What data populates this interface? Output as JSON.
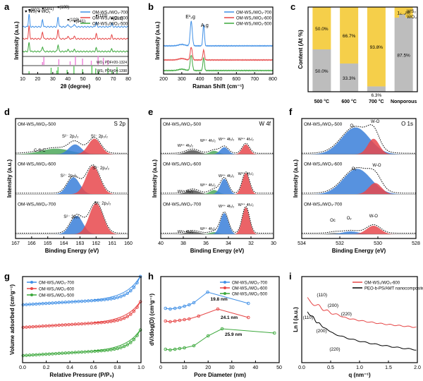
{
  "colors": {
    "blue": "#3f8fe6",
    "red": "#e64646",
    "green": "#3ca83c",
    "yellow": "#f5cf4a",
    "gray": "#bdbdbd",
    "pink": "#ee7fd8",
    "fillBlue": "#3a7fd9",
    "fillRed": "#e8484c",
    "fillGreen": "#4ca85a",
    "fillGray": "#8a8a8a"
  },
  "panels": [
    {
      "key": "a",
      "letter": "a",
      "xlabel": "2θ (degree)",
      "ylabel": "Intensity (a.u.)",
      "ticks": [
        "10",
        "20",
        "30",
        "40",
        "50",
        "60",
        "70",
        "80"
      ],
      "legend": [
        "OM-WS₂/WO₃-700",
        "OM-WS₂/WO₃-600",
        "OM-WS₂/WO₃-500"
      ],
      "markers": [
        "WS₂",
        "WO₃"
      ],
      "annotations": [
        "(002)",
        "(001)",
        "(100)",
        "(103)",
        "(041)",
        "(110)",
        "(201)"
      ],
      "refs": [
        "WO₃ PDF#20-1324",
        "WS₂ PDF#04-1398"
      ]
    },
    {
      "key": "b",
      "letter": "b",
      "xlabel": "Raman Shift (cm⁻¹)",
      "ylabel": "Intensity (a.u.)",
      "ticks": [
        "200",
        "300",
        "400",
        "500",
        "600",
        "700",
        "800"
      ],
      "legend": [
        "OM-WS₂/WO₃-700",
        "OM-WS₂/WO₃-600",
        "OM-WS₂/WO₃-500"
      ],
      "annotations": [
        "E¹₂g",
        "A₁g"
      ]
    },
    {
      "key": "c",
      "letter": "c",
      "ylabel": "Content (At %)",
      "ticks": [
        "0",
        "20",
        "40",
        "60",
        "80",
        "100"
      ],
      "legend": [
        "WS₂",
        "WO₃"
      ]
    },
    {
      "key": "d",
      "letter": "d",
      "xlabel": "Binding Energy (eV)",
      "ylabel": "Intensity (a.u.)",
      "title": "S 2p",
      "ticks": [
        "167",
        "166",
        "165",
        "164",
        "163",
        "162",
        "161",
        "160"
      ],
      "samples": [
        "OM-WS₂/WO₃-500",
        "OM-WS₂/WO₃-600",
        "OM-WS₂/WO₃-700"
      ],
      "peaks": [
        "S²⁻ 2p₁/₂",
        "S²⁻ 2p₃/₂",
        "C-S-C"
      ]
    },
    {
      "key": "e",
      "letter": "e",
      "xlabel": "Binding Energy (eV)",
      "ylabel": "Intensity (a.u.)",
      "title": "W 4f",
      "ticks": [
        "40",
        "38",
        "36",
        "34",
        "32",
        "30"
      ],
      "samples": [
        "OM-WS₂/WO₃-500",
        "OM-WS₂/WO₃-600",
        "OM-WS₂/WO₃-700"
      ],
      "peaks": [
        "W⁶⁺ 4f₅/₂",
        "W⁶⁺ 4f₇/₂",
        "W⁴⁺ 4f₅/₂",
        "W⁴⁺ 4f₇/₂"
      ]
    },
    {
      "key": "f",
      "letter": "f",
      "xlabel": "Binding Energy (eV)",
      "ylabel": "Intensity (a.u.)",
      "title": "O 1s",
      "ticks": [
        "534",
        "532",
        "530",
        "528"
      ],
      "samples": [
        "OM-WS₂/WO₃-500",
        "OM-WS₂/WO₃-600",
        "OM-WS₂/WO₃-700"
      ],
      "peaks": [
        "Oᵥ",
        "W-O",
        "Oc"
      ]
    },
    {
      "key": "g",
      "letter": "g",
      "xlabel": "Relative Pressure (P/P₀)",
      "ylabel": "Volume adsorbed (cm³g⁻¹)",
      "xticks": [
        "0.0",
        "0.2",
        "0.4",
        "0.6",
        "0.8",
        "1.0"
      ],
      "legend": [
        "OM-WS₂/WO₃-700",
        "OM-WS₂/WO₃-600",
        "OM-WS₂/WO₃-500"
      ]
    },
    {
      "key": "h",
      "letter": "h",
      "xlabel": "Pore Diameter (nm)",
      "ylabel": "dV/dlog(D) (cm³g⁻¹)",
      "xticks": [
        "0",
        "10",
        "20",
        "30",
        "40",
        "50"
      ],
      "legend": [
        "OM-WS₂/WO₃-700",
        "OM-WS₂/WO₃-600",
        "OM-WS₂/WO₃-500"
      ],
      "annotations": [
        "19.8 nm",
        "24.1 nm",
        "25.9 nm"
      ]
    },
    {
      "key": "i",
      "letter": "i",
      "xlabel": "q (nm⁻¹)",
      "ylabel": "Ln I (a.u.)",
      "xticks": [
        "0.0",
        "0.5",
        "1.0",
        "1.5",
        "2.0"
      ],
      "legend": [
        "OM-WS₂/WO₃-600",
        "PEO-b-PS/AMT nanocomposite"
      ],
      "annotations": [
        "(110)",
        "(200)",
        "(220)"
      ]
    }
  ],
  "chart_data": [
    {
      "type": "line",
      "panel": "a",
      "xlabel": "2θ (degree)",
      "ylabel": "Intensity (a.u.)",
      "xlim": [
        10,
        80
      ],
      "series": [
        {
          "name": "OM-WS₂/WO₃-700"
        },
        {
          "name": "OM-WS₂/WO₃-600"
        },
        {
          "name": "OM-WS₂/WO₃-500"
        }
      ],
      "peaks_2theta": [
        14.3,
        23.2,
        33.5,
        40.0,
        44.2,
        58.8,
        69.0
      ],
      "wo3_ref_2theta": [
        23.2,
        24.1,
        34.0,
        41.5,
        45.0,
        49.7,
        55.5,
        60.0,
        63.5,
        66.5
      ],
      "ws2_ref_2theta": [
        14.3,
        28.9,
        32.7,
        33.5,
        39.5,
        44.0,
        49.7,
        55.9,
        58.4,
        60.5,
        66.5,
        69.1,
        72.5
      ]
    },
    {
      "type": "line",
      "panel": "b",
      "xlabel": "Raman Shift (cm⁻¹)",
      "ylabel": "Intensity (a.u.)",
      "xlim": [
        200,
        800
      ],
      "series": [
        {
          "name": "OM-WS₂/WO₃-700"
        },
        {
          "name": "OM-WS₂/WO₃-600"
        },
        {
          "name": "OM-WS₂/WO₃-500"
        }
      ],
      "peaks": [
        {
          "label": "E¹₂g",
          "x": 352
        },
        {
          "label": "A₁g",
          "x": 420
        }
      ]
    },
    {
      "type": "bar",
      "panel": "c",
      "ylabel": "Content (At %)",
      "ylim": [
        0,
        100
      ],
      "categories": [
        "500 °C",
        "600 °C",
        "700 °C",
        "Nonporous"
      ],
      "series": [
        {
          "name": "WS₂",
          "values": [
            50.0,
            66.7,
            93.8,
            12.5
          ],
          "labels": [
            "50.0%",
            "66.7%",
            "93.8%",
            "12.5%"
          ]
        },
        {
          "name": "WO₃",
          "values": [
            50.0,
            33.3,
            6.3,
            87.5
          ],
          "labels": [
            "50.0%",
            "33.3%",
            "6.3%",
            "87.5%"
          ]
        }
      ]
    },
    {
      "type": "area",
      "panel": "d",
      "xlabel": "Binding Energy (eV)",
      "xlim": [
        167,
        160
      ],
      "samples": [
        {
          "name": "OM-WS₂/WO₃-500",
          "peaks": [
            {
              "label": "S²⁻ 2p₁/₂",
              "center": 163.3
            },
            {
              "label": "S²⁻ 2p₃/₂",
              "center": 162.1
            },
            {
              "label": "C-S-C",
              "center": 164.5
            }
          ]
        },
        {
          "name": "OM-WS₂/WO₃-600",
          "peaks": [
            {
              "label": "S²⁻ 2p₁/₂",
              "center": 163.4
            },
            {
              "label": "S²⁻ 2p₃/₂",
              "center": 162.2
            }
          ]
        },
        {
          "name": "OM-WS₂/WO₃-700",
          "peaks": [
            {
              "label": "S²⁻ 2p₁/₂",
              "center": 163.2
            },
            {
              "label": "S²⁻ 2p₃/₂",
              "center": 162.0
            }
          ]
        }
      ]
    },
    {
      "type": "area",
      "panel": "e",
      "xlabel": "Binding Energy (eV)",
      "xlim": [
        41,
        30
      ],
      "samples": [
        {
          "name": "OM-WS₂/WO₃-500",
          "peaks": [
            {
              "label": "W⁶⁺ 4f₅/₂",
              "center": 37.9
            },
            {
              "label": "W⁶⁺ 4f₇/₂",
              "center": 35.8
            },
            {
              "label": "W⁴⁺ 4f₅/₂",
              "center": 34.8
            },
            {
              "label": "W⁴⁺ 4f₇/₂",
              "center": 32.7
            }
          ]
        },
        {
          "name": "OM-WS₂/WO₃-600",
          "peaks": [
            {
              "label": "W⁶⁺ 4f₅/₂",
              "center": 37.9
            },
            {
              "label": "W⁶⁺ 4f₇/₂",
              "center": 35.8
            },
            {
              "label": "W⁴⁺ 4f₅/₂",
              "center": 34.8
            },
            {
              "label": "W⁴⁺ 4f₇/₂",
              "center": 32.7
            }
          ]
        },
        {
          "name": "OM-WS₂/WO₃-700",
          "peaks": [
            {
              "label": "W⁶⁺ 4f₅/₂",
              "center": 37.9
            },
            {
              "label": "W⁶⁺ 4f₇/₂",
              "center": 35.8
            },
            {
              "label": "W⁴⁺ 4f₅/₂",
              "center": 34.8
            },
            {
              "label": "W⁴⁺ 4f₇/₂",
              "center": 32.7
            }
          ]
        }
      ]
    },
    {
      "type": "area",
      "panel": "f",
      "xlabel": "Binding Energy (eV)",
      "xlim": [
        535,
        528
      ],
      "samples": [
        {
          "name": "OM-WS₂/WO₃-500",
          "peaks": [
            {
              "label": "Oᵥ",
              "center": 531.7
            },
            {
              "label": "W-O",
              "center": 530.6
            }
          ]
        },
        {
          "name": "OM-WS₂/WO₃-600",
          "peaks": [
            {
              "label": "Oᵥ",
              "center": 531.6
            },
            {
              "label": "W-O",
              "center": 530.5
            }
          ]
        },
        {
          "name": "OM-WS₂/WO₃-700",
          "peaks": [
            {
              "label": "Oc",
              "center": 533.0
            },
            {
              "label": "Oᵥ",
              "center": 532.0
            },
            {
              "label": "W-O",
              "center": 530.6
            }
          ]
        }
      ]
    },
    {
      "type": "line",
      "panel": "g",
      "xlabel": "Relative Pressure (P/P₀)",
      "ylabel": "Volume adsorbed (cm³g⁻¹)",
      "xlim": [
        0,
        1
      ],
      "series": [
        {
          "name": "OM-WS₂/WO₃-700"
        },
        {
          "name": "OM-WS₂/WO₃-600"
        },
        {
          "name": "OM-WS₂/WO₃-500"
        }
      ]
    },
    {
      "type": "line",
      "panel": "h",
      "xlabel": "Pore Diameter (nm)",
      "ylabel": "dV/dlog(D) (cm³g⁻¹)",
      "xlim": [
        0,
        50
      ],
      "series": [
        {
          "name": "OM-WS₂/WO₃-700",
          "peak_nm": 19.8
        },
        {
          "name": "OM-WS₂/WO₃-600",
          "peak_nm": 24.1
        },
        {
          "name": "OM-WS₂/WO₃-500",
          "peak_nm": 25.9
        }
      ]
    },
    {
      "type": "line",
      "panel": "i",
      "xlabel": "q (nm⁻¹)",
      "ylabel": "Ln I (a.u.)",
      "xlim": [
        0,
        2
      ],
      "series": [
        {
          "name": "OM-WS₂/WO₃-600",
          "peaks": [
            {
              "label": "(110)",
              "q": 0.3
            },
            {
              "label": "(200)",
              "q": 0.45
            },
            {
              "label": "(220)",
              "q": 0.62
            }
          ]
        },
        {
          "name": "PEO-b-PS/AMT nanocomposite",
          "peaks": [
            {
              "label": "(110)",
              "q": 0.2
            },
            {
              "label": "(200)",
              "q": 0.3
            },
            {
              "label": "(220)",
              "q": 0.42
            }
          ]
        }
      ]
    }
  ]
}
